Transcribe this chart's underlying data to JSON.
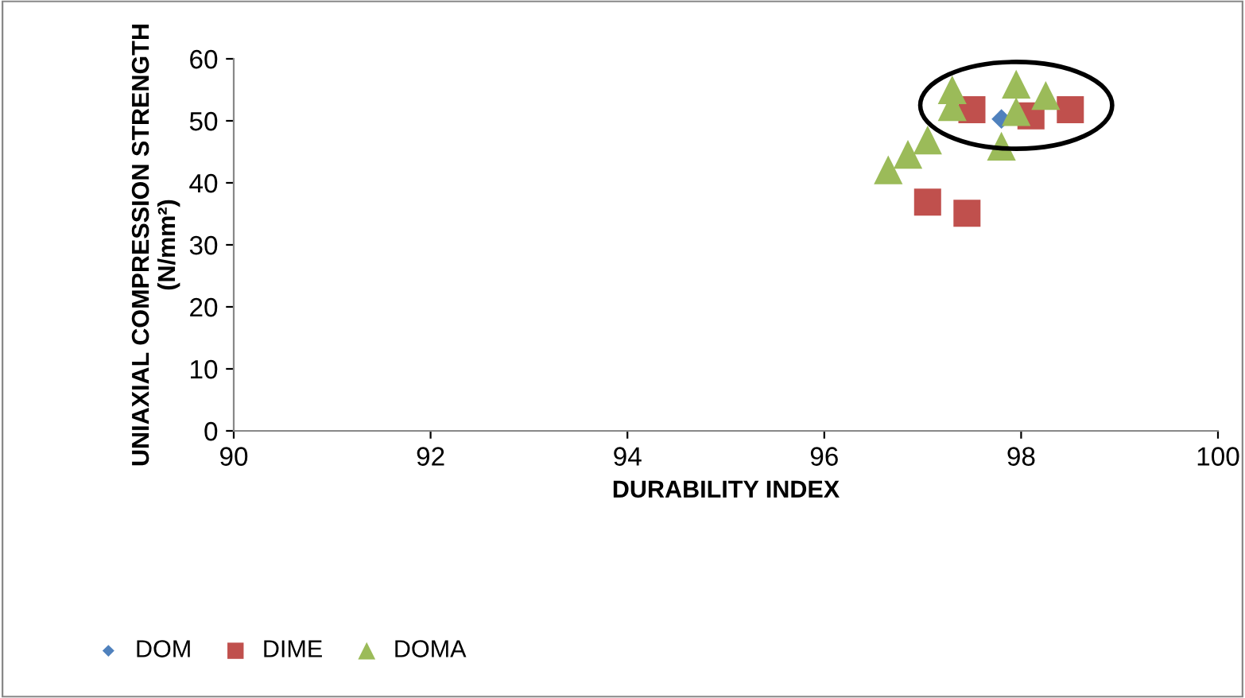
{
  "chart_data": {
    "type": "scatter",
    "xlabel": "DURABILITY INDEX",
    "ylabel": "UNIAXIAL COMPRESSION STRENGTH\n(N/mm²)",
    "xlim": [
      90,
      100
    ],
    "xticks": [
      90,
      92,
      94,
      96,
      98,
      100
    ],
    "ylim": [
      0,
      60
    ],
    "yticks": [
      0,
      10,
      20,
      30,
      40,
      50,
      60
    ],
    "grid": false,
    "legend": "bottom",
    "series": [
      {
        "name": "DOM",
        "color": "#4f81bd",
        "marker": "diamond",
        "x": [
          97.8
        ],
        "values": [
          50.3
        ]
      },
      {
        "name": "DIME",
        "color": "#c0504d",
        "marker": "square",
        "x": [
          97.5,
          98.1,
          98.5,
          97.05,
          97.45
        ],
        "values": [
          51.8,
          50.8,
          51.8,
          36.9,
          35.1
        ]
      },
      {
        "name": "DOMA",
        "color": "#9bbb59",
        "marker": "triangle",
        "x": [
          97.3,
          97.3,
          97.95,
          97.95,
          98.25,
          97.8,
          97.05,
          96.85,
          96.65
        ],
        "values": [
          55,
          52.3,
          55.9,
          51.5,
          54.1,
          45.9,
          46.9,
          44.6,
          42.1
        ]
      }
    ]
  }
}
